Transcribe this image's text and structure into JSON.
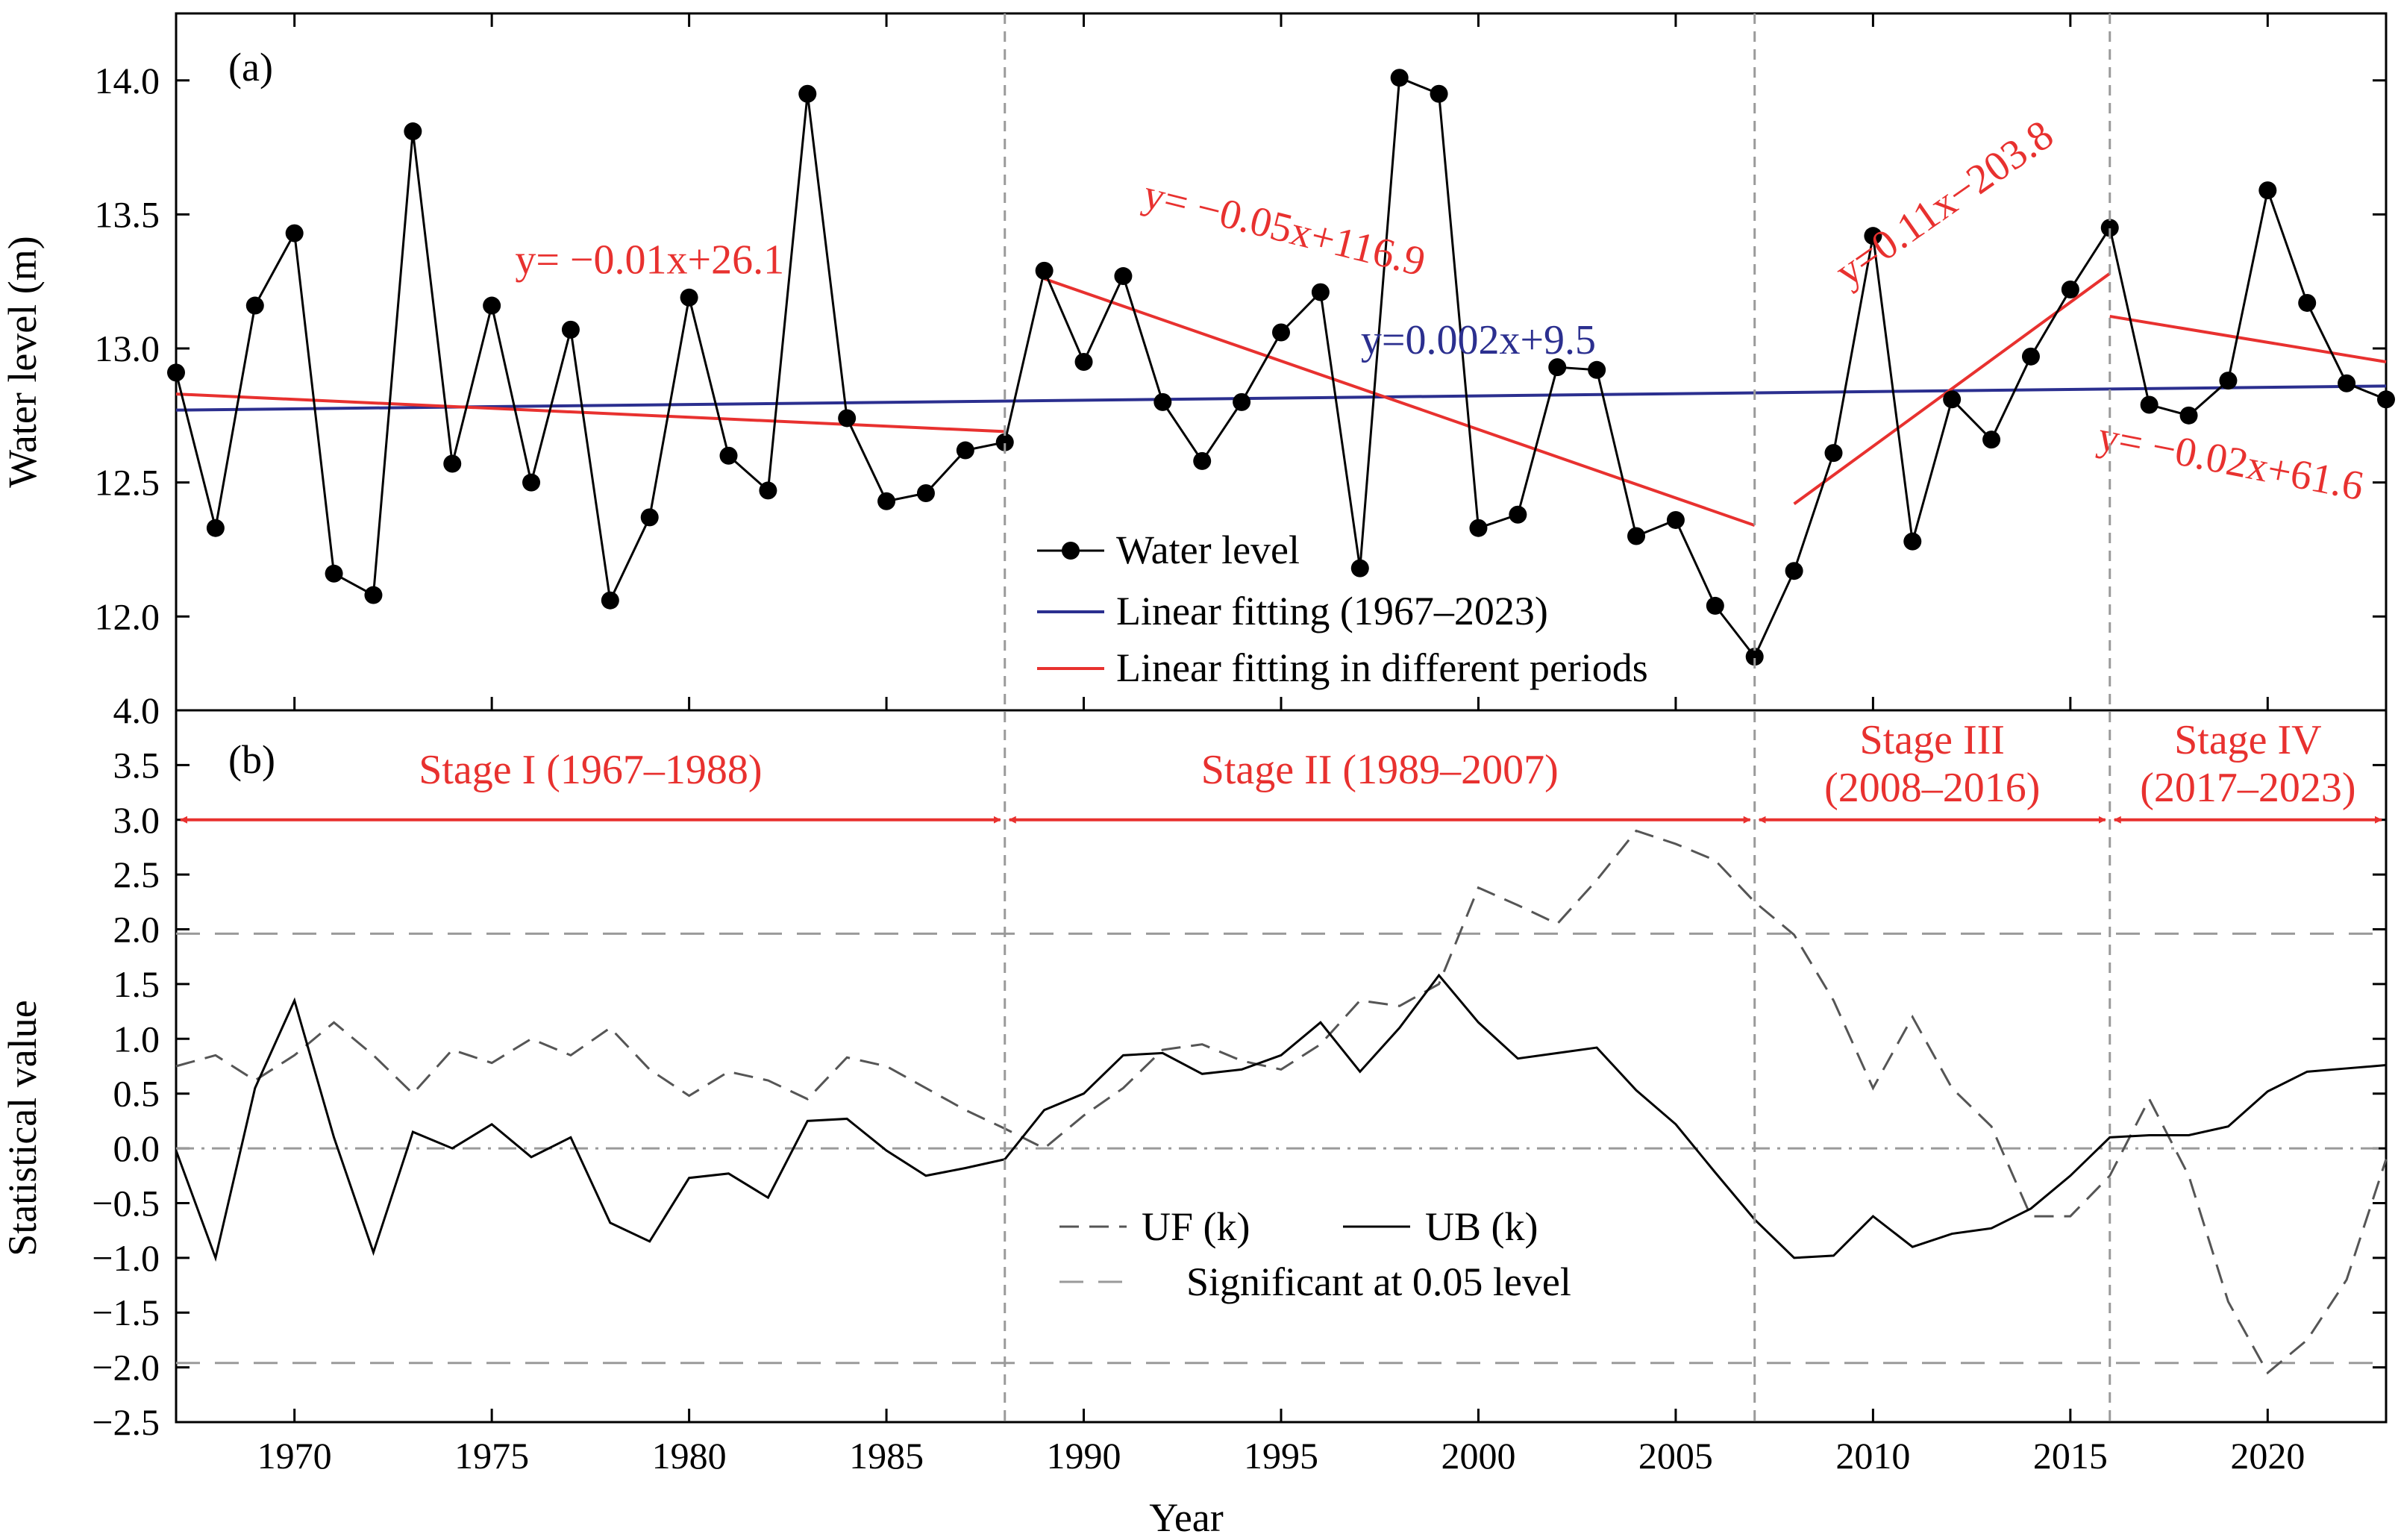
{
  "colors": {
    "black": "#000000",
    "red": "#e8312f",
    "blue": "#2b2f8f",
    "gray": "#9a9a9a",
    "darkgray": "#555555"
  },
  "chart_data": [
    {
      "type": "line",
      "panel_label": "(a)",
      "ylabel": "Water level (m)",
      "xlim": [
        1967,
        2023
      ],
      "ylim": [
        11.65,
        14.25
      ],
      "yticks": [
        12.0,
        12.5,
        13.0,
        13.5,
        14.0
      ],
      "ytick_labels": [
        "12.0",
        "12.5",
        "13.0",
        "13.5",
        "14.0"
      ],
      "legend_position": "bottom-center",
      "series": [
        {
          "name": "Water level",
          "style": "line-with-markers",
          "x": [
            1967,
            1968,
            1969,
            1970,
            1971,
            1972,
            1973,
            1974,
            1975,
            1976,
            1977,
            1978,
            1979,
            1980,
            1981,
            1982,
            1983,
            1984,
            1985,
            1986,
            1987,
            1988,
            1989,
            1990,
            1991,
            1992,
            1993,
            1994,
            1995,
            1996,
            1997,
            1998,
            1999,
            2000,
            2001,
            2002,
            2003,
            2004,
            2005,
            2006,
            2007,
            2008,
            2009,
            2010,
            2011,
            2012,
            2013,
            2014,
            2015,
            2016,
            2017,
            2018,
            2019,
            2020,
            2021,
            2022,
            2023
          ],
          "y": [
            12.91,
            12.33,
            13.16,
            13.43,
            12.16,
            12.08,
            13.81,
            12.57,
            13.16,
            12.5,
            13.07,
            12.06,
            12.37,
            13.19,
            12.6,
            12.47,
            13.95,
            12.74,
            12.43,
            12.46,
            12.62,
            12.65,
            13.29,
            12.95,
            13.27,
            12.8,
            12.58,
            12.8,
            13.06,
            13.21,
            12.18,
            14.01,
            13.95,
            12.33,
            12.38,
            12.93,
            12.92,
            12.3,
            12.36,
            12.04,
            11.85,
            12.17,
            12.61,
            13.42,
            12.28,
            12.81,
            12.66,
            12.97,
            13.22,
            13.45,
            12.79,
            12.75,
            12.88,
            13.59,
            13.17,
            12.87,
            12.81
          ]
        },
        {
          "name": "Linear fitting (1967–2023)",
          "style": "fit",
          "x": [
            1967,
            2023
          ],
          "y": [
            12.77,
            12.86
          ]
        },
        {
          "name": "Linear fitting in different periods",
          "style": "fit",
          "segments": [
            {
              "x": [
                1967,
                1988
              ],
              "y": [
                12.83,
                12.69
              ]
            },
            {
              "x": [
                1989,
                2007
              ],
              "y": [
                13.26,
                12.34
              ]
            },
            {
              "x": [
                2008,
                2016
              ],
              "y": [
                12.42,
                13.28
              ]
            },
            {
              "x": [
                2016,
                2023
              ],
              "y": [
                13.12,
                12.95
              ]
            }
          ]
        }
      ],
      "equations": [
        {
          "text": "y= −0.01x+26.1",
          "x": 1979,
          "y": 13.28,
          "rotate": 0,
          "color": "red"
        },
        {
          "text": "y= −0.05x+116.9",
          "x": 1995,
          "y": 13.4,
          "rotate": 14,
          "color": "red"
        },
        {
          "text": "y=0.002x+9.5",
          "x": 2000,
          "y": 12.98,
          "rotate": 0,
          "color": "blue"
        },
        {
          "text": "y=0.11x−203.8",
          "x": 2012,
          "y": 13.5,
          "rotate": -35,
          "color": "red"
        },
        {
          "text": "y= −0.02x+61.6",
          "x": 2019,
          "y": 12.53,
          "rotate": 11,
          "color": "red"
        }
      ]
    },
    {
      "type": "line",
      "panel_label": "(b)",
      "xlabel": "Year",
      "ylabel": "Statistical value",
      "xlim": [
        1967,
        2023
      ],
      "ylim": [
        -2.5,
        4.0
      ],
      "yticks": [
        -2.5,
        -2.0,
        -1.5,
        -1.0,
        -0.5,
        0.0,
        0.5,
        1.0,
        1.5,
        2.0,
        2.5,
        3.0,
        3.5,
        4.0
      ],
      "ytick_labels": [
        "−2.5",
        "−2.0",
        "−1.5",
        "−1.0",
        "−0.5",
        "0.0",
        "0.5",
        "1.0",
        "1.5",
        "2.0",
        "2.5",
        "3.0",
        "3.5",
        "4.0"
      ],
      "xticks": [
        1970,
        1975,
        1980,
        1985,
        1990,
        1995,
        2000,
        2005,
        2010,
        2015,
        2020
      ],
      "xtick_labels": [
        "1970",
        "1975",
        "1980",
        "1985",
        "1990",
        "1995",
        "2000",
        "2005",
        "2010",
        "2015",
        "2020"
      ],
      "significance_levels": [
        1.96,
        -1.96
      ],
      "legend_position": "bottom-center",
      "series": [
        {
          "name": "UF (k)",
          "style": "dashed",
          "x": [
            1967,
            1968,
            1969,
            1970,
            1971,
            1972,
            1973,
            1974,
            1975,
            1976,
            1977,
            1978,
            1979,
            1980,
            1981,
            1982,
            1983,
            1984,
            1985,
            1986,
            1987,
            1988,
            1989,
            1990,
            1991,
            1992,
            1993,
            1994,
            1995,
            1996,
            1997,
            1998,
            1999,
            2000,
            2001,
            2002,
            2003,
            2004,
            2005,
            2006,
            2007,
            2008,
            2009,
            2010,
            2011,
            2012,
            2013,
            2014,
            2015,
            2016,
            2017,
            2018,
            2019,
            2020,
            2021,
            2022,
            2023
          ],
          "y": [
            0.75,
            0.85,
            0.62,
            0.85,
            1.15,
            0.85,
            0.5,
            0.9,
            0.78,
            1.0,
            0.85,
            1.1,
            0.72,
            0.48,
            0.7,
            0.62,
            0.45,
            0.83,
            0.75,
            0.55,
            0.35,
            0.18,
            0.0,
            0.3,
            0.55,
            0.9,
            0.95,
            0.8,
            0.72,
            0.95,
            1.35,
            1.3,
            1.5,
            2.38,
            2.22,
            2.05,
            2.45,
            2.9,
            2.78,
            2.63,
            2.25,
            1.95,
            1.35,
            0.55,
            1.2,
            0.55,
            0.2,
            -0.62,
            -0.62,
            -0.25,
            0.45,
            -0.25,
            -1.4,
            -2.05,
            -1.75,
            -1.2,
            -0.1
          ]
        },
        {
          "name": "UB (k)",
          "style": "solid",
          "x": [
            1967,
            1968,
            1969,
            1970,
            1971,
            1972,
            1973,
            1974,
            1975,
            1976,
            1977,
            1978,
            1979,
            1980,
            1981,
            1982,
            1983,
            1984,
            1985,
            1986,
            1987,
            1988,
            1989,
            1990,
            1991,
            1992,
            1993,
            1994,
            1995,
            1996,
            1997,
            1998,
            1999,
            2000,
            2001,
            2002,
            2003,
            2004,
            2005,
            2006,
            2007,
            2008,
            2009,
            2010,
            2011,
            2012,
            2013,
            2014,
            2015,
            2016,
            2017,
            2018,
            2019,
            2020,
            2021,
            2022,
            2023
          ],
          "y": [
            -0.02,
            -1.0,
            0.55,
            1.35,
            0.1,
            -0.95,
            0.15,
            0.0,
            0.22,
            -0.08,
            0.1,
            -0.68,
            -0.85,
            -0.27,
            -0.23,
            -0.45,
            0.25,
            0.27,
            -0.02,
            -0.25,
            -0.18,
            -0.1,
            0.35,
            0.5,
            0.85,
            0.87,
            0.68,
            0.72,
            0.85,
            1.15,
            0.7,
            1.1,
            1.58,
            1.15,
            0.82,
            0.87,
            0.92,
            0.53,
            0.22,
            -0.22,
            -0.65,
            -1.0,
            -0.98,
            -0.62,
            -0.9,
            -0.78,
            -0.73,
            -0.55,
            -0.25,
            0.1,
            0.12,
            0.12,
            0.2,
            0.52,
            0.7,
            0.73,
            0.76
          ]
        },
        {
          "name": "Significant at 0.05 level",
          "style": "gray-dashed"
        }
      ],
      "stages": [
        {
          "label": "Stage I (1967–1988)",
          "line1": "Stage I (1967–1988)",
          "line2": "",
          "x0": 1967,
          "x1": 1988
        },
        {
          "label": "Stage II (1989–2007)",
          "line1": "Stage II (1989–2007)",
          "line2": "",
          "x0": 1988,
          "x1": 2007
        },
        {
          "label": "Stage III (2008–2016)",
          "line1": "Stage III",
          "line2": "(2008–2016)",
          "x0": 2007,
          "x1": 2016
        },
        {
          "label": "Stage IV (2017–2023)",
          "line1": "Stage IV",
          "line2": "(2017–2023)",
          "x0": 2016,
          "x1": 2023
        }
      ]
    }
  ],
  "stage_boundaries": [
    1988,
    2007,
    2016
  ]
}
